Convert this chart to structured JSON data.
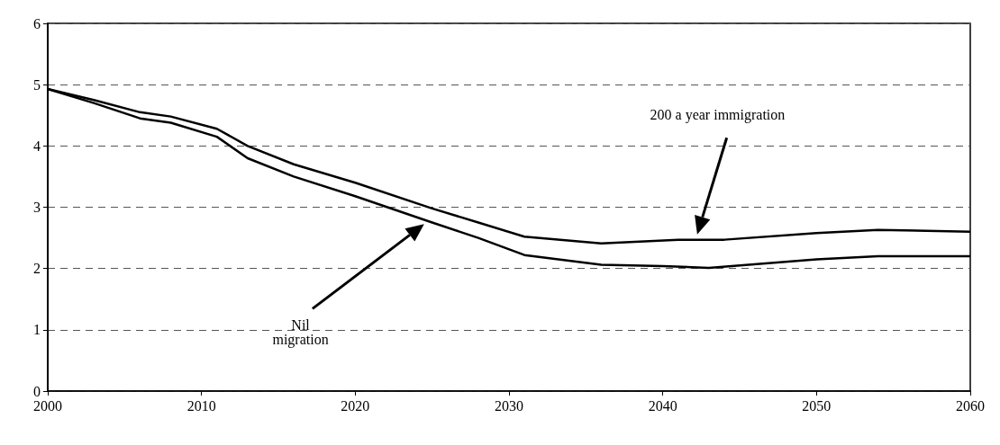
{
  "chart_data": {
    "type": "line",
    "xlim": [
      2000,
      2060
    ],
    "xticks": [
      2000,
      2010,
      2020,
      2030,
      2040,
      2050,
      2060
    ],
    "ylim": [
      0,
      6
    ],
    "yticks": [
      0,
      1,
      2,
      3,
      4,
      5,
      6
    ],
    "grid": "y",
    "marker": "none",
    "line_style": "solid",
    "annotations": [
      "Nil\nmigration",
      "200 a year immigration"
    ],
    "series": [
      {
        "color": "#000000",
        "x": [
          2000,
          2003,
          2006,
          2008,
          2011,
          2013,
          2016,
          2020,
          2025,
          2028,
          2031,
          2036,
          2041,
          2044,
          2050,
          2054,
          2060
        ],
        "values": [
          4.93,
          4.75,
          4.55,
          4.48,
          4.28,
          4.0,
          3.7,
          3.4,
          2.98,
          2.75,
          2.52,
          2.41,
          2.47,
          2.47,
          2.58,
          2.63,
          2.6
        ]
      },
      {
        "color": "#000000",
        "x": [
          2000,
          2003,
          2006,
          2008,
          2011,
          2013,
          2016,
          2020,
          2025,
          2028,
          2031,
          2036,
          2040,
          2043,
          2050,
          2054,
          2060
        ],
        "values": [
          4.93,
          4.7,
          4.45,
          4.38,
          4.15,
          3.8,
          3.5,
          3.18,
          2.75,
          2.5,
          2.22,
          2.06,
          2.04,
          2.01,
          2.15,
          2.2,
          2.2
        ]
      }
    ]
  }
}
